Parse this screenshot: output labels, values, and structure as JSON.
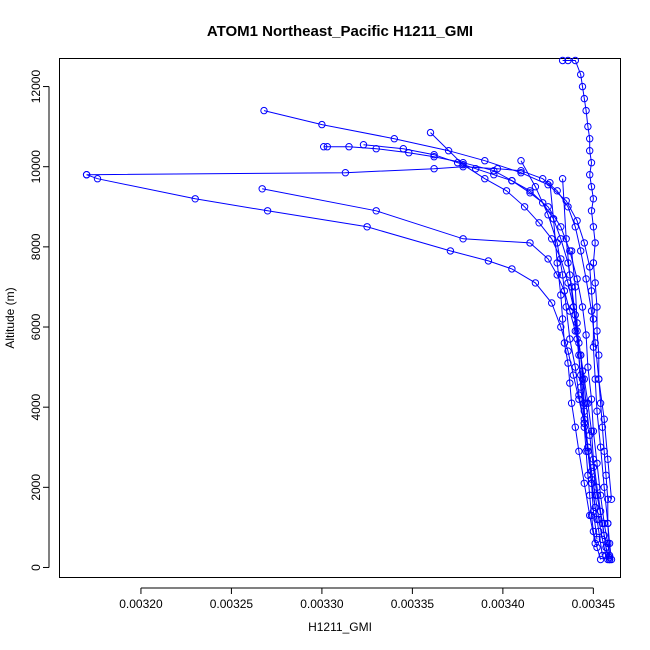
{
  "chart_data": {
    "type": "line",
    "title": "ATOM1 Northeast_Pacific H1211_GMI",
    "xlabel": "H1211_GMI",
    "ylabel": "Altitude (m)",
    "xlim": [
      0.003155,
      0.003465
    ],
    "ylim": [
      -250,
      12700
    ],
    "x_ticks": [
      0.0032,
      0.00325,
      0.0033,
      0.00335,
      0.0034,
      0.00345
    ],
    "x_tick_labels": [
      "0.00320",
      "0.00325",
      "0.00330",
      "0.00335",
      "0.00340",
      "0.00345"
    ],
    "y_ticks": [
      0,
      2000,
      4000,
      6000,
      8000,
      10000,
      12000
    ],
    "y_tick_labels": [
      "0",
      "2000",
      "4000",
      "6000",
      "8000",
      "10000",
      "12000"
    ],
    "color": "#0000ff",
    "marker": "open-circle",
    "grid": false,
    "series": [
      {
        "x": [
          0.003433,
          0.003436,
          0.00344,
          0.003443,
          0.003444,
          0.003445,
          0.003446,
          0.003447,
          0.003448,
          0.003448,
          0.003449,
          0.003448,
          0.003449,
          0.00345,
          0.003449,
          0.00345,
          0.003451,
          0.00345,
          0.003451,
          0.003452,
          0.003452,
          0.003453,
          0.003453,
          0.003454,
          0.003455,
          0.003456,
          0.003457,
          0.003458,
          0.003458,
          0.003459,
          0.00346
        ],
        "y": [
          12650,
          12650,
          12650,
          12300,
          12000,
          11700,
          11400,
          11000,
          10700,
          10400,
          10100,
          9800,
          9500,
          9200,
          8900,
          8500,
          8100,
          7600,
          7100,
          6500,
          5900,
          5300,
          4700,
          4100,
          3500,
          2900,
          2300,
          1700,
          1100,
          600,
          200
        ]
      },
      {
        "x": [
          0.003268,
          0.0033,
          0.00334,
          0.00337,
          0.00339,
          0.00341,
          0.003425,
          0.003435,
          0.003441,
          0.003445,
          0.003448,
          0.003449,
          0.00345,
          0.00345,
          0.003451,
          0.003452,
          0.003454,
          0.003456,
          0.003458,
          0.003459
        ],
        "y": [
          11400,
          11050,
          10700,
          10400,
          10150,
          9850,
          9550,
          9150,
          8650,
          8100,
          7500,
          6900,
          6200,
          5500,
          4700,
          3900,
          3000,
          2000,
          1100,
          300
        ]
      },
      {
        "x": [
          0.003301,
          0.003303,
          0.003315,
          0.00333,
          0.003348,
          0.003362,
          0.003378,
          0.003395,
          0.003405,
          0.003415,
          0.003425,
          0.003432,
          0.003437,
          0.003441,
          0.003444,
          0.003446,
          0.003447,
          0.003449,
          0.00345,
          0.003452,
          0.003454,
          0.003456,
          0.003458,
          0.003459
        ],
        "y": [
          10500,
          10500,
          10500,
          10450,
          10350,
          10250,
          10100,
          9900,
          9650,
          9350,
          9000,
          8500,
          7900,
          7200,
          6500,
          5800,
          5000,
          4200,
          3400,
          2600,
          1800,
          1100,
          600,
          250
        ]
      },
      {
        "x": [
          0.003323,
          0.003345,
          0.003362,
          0.003375,
          0.003385,
          0.003395,
          0.003405,
          0.003415,
          0.003422,
          0.003428,
          0.003432,
          0.003436,
          0.003438,
          0.00344,
          0.003442,
          0.003444,
          0.003446,
          0.003448,
          0.00345,
          0.003452,
          0.003455,
          0.003457,
          0.003459
        ],
        "y": [
          10550,
          10450,
          10300,
          10100,
          9950,
          9800,
          9650,
          9400,
          9100,
          8700,
          8200,
          7600,
          7000,
          6300,
          5600,
          4900,
          4100,
          3300,
          2500,
          1800,
          1100,
          500,
          200
        ]
      },
      {
        "x": [
          0.00317,
          0.003176,
          0.00323,
          0.00327,
          0.003325,
          0.003371,
          0.003392,
          0.003405,
          0.003418,
          0.003427,
          0.003432,
          0.003436,
          0.003439,
          0.003442,
          0.003445,
          0.003447,
          0.003449,
          0.003451,
          0.003453,
          0.003455,
          0.003457,
          0.003459
        ],
        "y": [
          9800,
          9700,
          9200,
          8900,
          8500,
          7900,
          7650,
          7450,
          7100,
          6600,
          6000,
          5400,
          4800,
          4200,
          3600,
          3000,
          2400,
          1800,
          1200,
          700,
          300,
          200
        ]
      },
      {
        "x": [
          0.00317,
          0.003313,
          0.003362,
          0.003378,
          0.003397,
          0.00341,
          0.003422,
          0.00343,
          0.003436,
          0.00344,
          0.003443,
          0.003446,
          0.003449,
          0.003451,
          0.003453,
          0.003456,
          0.003458,
          0.00346
        ],
        "y": [
          9800,
          9850,
          9950,
          10000,
          9950,
          9900,
          9700,
          9400,
          9000,
          8500,
          7900,
          7200,
          6400,
          5600,
          4700,
          3700,
          2700,
          1700
        ]
      },
      {
        "x": [
          0.003267,
          0.00333,
          0.003378,
          0.003415,
          0.003425,
          0.00343,
          0.003434,
          0.003437,
          0.00344,
          0.003443,
          0.003445,
          0.003447,
          0.003449,
          0.00345,
          0.003452,
          0.003454,
          0.003456,
          0.003458
        ],
        "y": [
          9450,
          8900,
          8200,
          8100,
          7700,
          7300,
          6900,
          6400,
          5900,
          5300,
          4700,
          4100,
          3400,
          2700,
          2000,
          1400,
          800,
          200
        ]
      },
      {
        "x": [
          0.00336,
          0.003378,
          0.00339,
          0.003402,
          0.003412,
          0.00342,
          0.003427,
          0.003432,
          0.003436,
          0.003439,
          0.003441,
          0.003443,
          0.003444,
          0.003445,
          0.003445,
          0.003446,
          0.003447,
          0.003448,
          0.003449,
          0.00345,
          0.003452,
          0.003454
        ],
        "y": [
          10850,
          10050,
          9700,
          9400,
          9000,
          8600,
          8200,
          7700,
          7100,
          6500,
          5900,
          5300,
          4700,
          4100,
          3500,
          2900,
          2300,
          1800,
          1300,
          900,
          500,
          200
        ]
      },
      {
        "x": [
          0.00341,
          0.003418,
          0.003425,
          0.00343,
          0.003433,
          0.003435,
          0.003437,
          0.00344,
          0.003442,
          0.003445,
          0.003447,
          0.003449,
          0.003451,
          0.003453,
          0.003455
        ],
        "y": [
          10150,
          9500,
          8800,
          8100,
          7300,
          6500,
          5700,
          5000,
          4300,
          3600,
          2900,
          2200,
          1500,
          900,
          300
        ]
      },
      {
        "x": [
          0.003426,
          0.003428,
          0.00343,
          0.003432,
          0.003433,
          0.003434,
          0.003436,
          0.003437,
          0.003438,
          0.00344,
          0.003442,
          0.003445,
          0.003448,
          0.003451
        ],
        "y": [
          9600,
          8700,
          7600,
          6800,
          6200,
          5600,
          5100,
          4600,
          4100,
          3500,
          2900,
          2100,
          1300,
          600
        ]
      },
      {
        "x": [
          0.003433,
          0.003435,
          0.003437,
          0.003439,
          0.003441,
          0.003443,
          0.003445,
          0.003447,
          0.003449,
          0.003452
        ],
        "y": [
          9700,
          8200,
          7300,
          6500,
          5700,
          4800,
          3900,
          3000,
          2100,
          1200
        ]
      },
      {
        "x": [
          0.003438,
          0.00344,
          0.003441,
          0.003442,
          0.003443,
          0.003445,
          0.003447,
          0.003449,
          0.00345,
          0.003452
        ],
        "y": [
          7900,
          7000,
          6100,
          5300,
          4500,
          3700,
          2900,
          2100,
          1400,
          700
        ]
      }
    ]
  }
}
